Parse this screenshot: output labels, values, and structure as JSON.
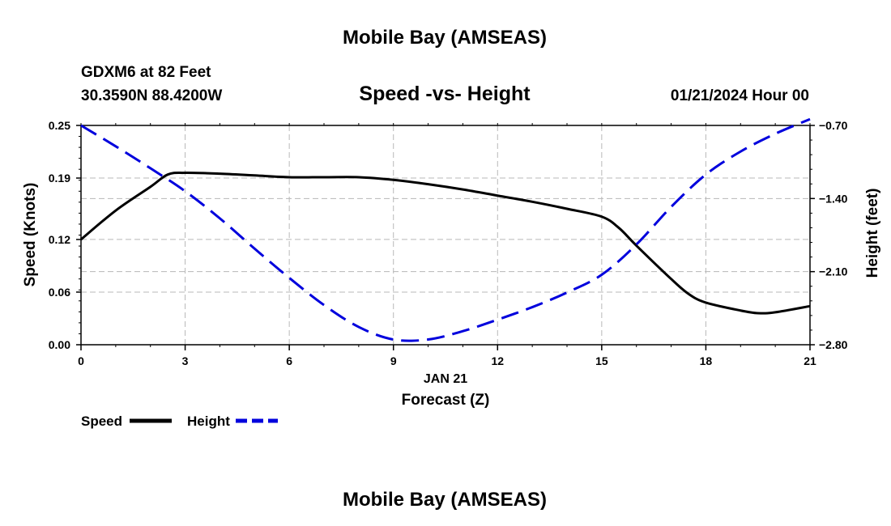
{
  "header": {
    "title": "Mobile Bay (AMSEAS)",
    "station": "GDXM6 at 82 Feet",
    "coords": "30.3590N  88.4200W",
    "subtitle": "Speed -vs- Height",
    "datetime": "01/21/2024 Hour 00"
  },
  "footer": {
    "title": "Mobile Bay (AMSEAS)"
  },
  "chart_data": {
    "type": "line",
    "title": "Speed -vs- Height",
    "xlabel": "Forecast (Z)",
    "xdate": "JAN 21",
    "ylabel": "Speed (Knots)",
    "y2label": "Height (feet)",
    "xlim": [
      0,
      21
    ],
    "ylim": [
      0,
      0.25
    ],
    "y2lim": [
      -2.8,
      -0.7
    ],
    "x_ticks": [
      "0",
      "3",
      "6",
      "9",
      "12",
      "15",
      "18",
      "21"
    ],
    "y_ticks": [
      "0.00",
      "0.06",
      "0.12",
      "0.19",
      "0.25"
    ],
    "y2_ticks": [
      "-2.80",
      "-2.10",
      "-1.40",
      "-0.70"
    ],
    "grid": true,
    "legend_position": "bottom-left",
    "series": [
      {
        "name": "Speed",
        "axis": "left",
        "color": "#000000",
        "style": "solid",
        "x": [
          0,
          1,
          2,
          2.5,
          3,
          4,
          5,
          6,
          7,
          8,
          9,
          10,
          11,
          12,
          13,
          14,
          15,
          15.5,
          16,
          17,
          17.5,
          18,
          19,
          19.5,
          20,
          21
        ],
        "y": [
          0.12,
          0.153,
          0.18,
          0.194,
          0.196,
          0.195,
          0.193,
          0.191,
          0.191,
          0.191,
          0.188,
          0.183,
          0.177,
          0.17,
          0.163,
          0.155,
          0.146,
          0.133,
          0.113,
          0.075,
          0.058,
          0.048,
          0.039,
          0.036,
          0.037,
          0.044
        ]
      },
      {
        "name": "Height",
        "axis": "right",
        "color": "#0000dd",
        "style": "dashed",
        "x": [
          0,
          1,
          2,
          3,
          4,
          5,
          6,
          7,
          8,
          9,
          10,
          11,
          12,
          13,
          14,
          15,
          16,
          17,
          18,
          19,
          20,
          21
        ],
        "y": [
          -0.7,
          -0.9,
          -1.11,
          -1.33,
          -1.59,
          -1.88,
          -2.16,
          -2.42,
          -2.63,
          -2.75,
          -2.75,
          -2.67,
          -2.56,
          -2.44,
          -2.3,
          -2.13,
          -1.84,
          -1.48,
          -1.17,
          -0.95,
          -0.78,
          -0.64
        ]
      }
    ]
  }
}
